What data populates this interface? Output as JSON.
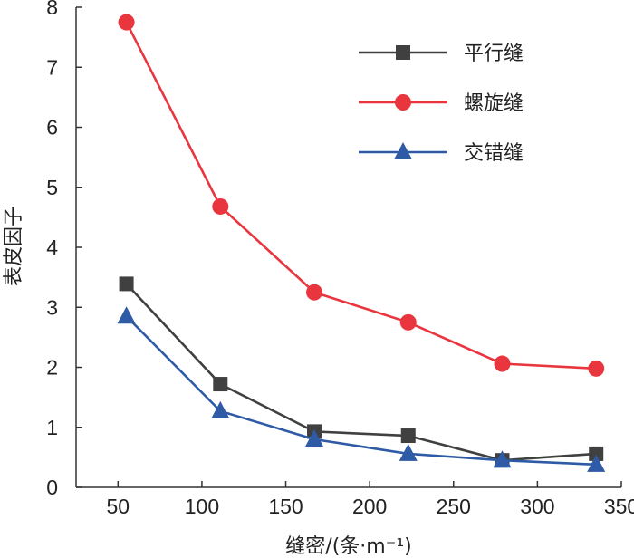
{
  "chart_data": {
    "type": "line",
    "title": "",
    "xlabel": "缝密/(条·m⁻¹)",
    "ylabel": "表皮因子",
    "xlim": [
      25,
      350
    ],
    "ylim": [
      0,
      8
    ],
    "xticks": [
      50,
      100,
      150,
      200,
      250,
      300,
      350
    ],
    "yticks": [
      0,
      1,
      2,
      3,
      4,
      5,
      6,
      7,
      8
    ],
    "grid": false,
    "legend_position": "top-right",
    "x": [
      55,
      111,
      167,
      223,
      279,
      335
    ],
    "series": [
      {
        "name": "平行缝",
        "color": "#404040",
        "marker": "square",
        "values": [
          3.39,
          1.72,
          0.93,
          0.86,
          0.45,
          0.56
        ]
      },
      {
        "name": "螺旋缝",
        "color": "#e8353e",
        "marker": "circle",
        "values": [
          7.75,
          4.68,
          3.25,
          2.75,
          2.06,
          1.98
        ]
      },
      {
        "name": "交错缝",
        "color": "#2e5aa6",
        "marker": "triangle",
        "values": [
          2.85,
          1.27,
          0.8,
          0.56,
          0.45,
          0.38
        ]
      }
    ]
  }
}
